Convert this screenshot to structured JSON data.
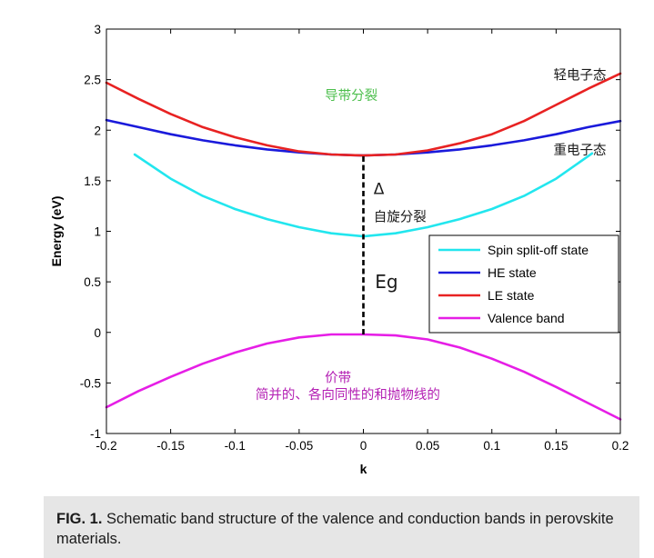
{
  "chart_data": {
    "type": "line",
    "xlabel": "k",
    "ylabel": "Energy (eV)",
    "xlim": [
      -0.2,
      0.2
    ],
    "ylim": [
      -1,
      3
    ],
    "xticks": [
      "-0.2",
      "-0.15",
      "-0.1",
      "-0.05",
      "0",
      "0.05",
      "0.1",
      "0.15",
      "0.2"
    ],
    "yticks": [
      "-1",
      "-0.5",
      "0",
      "0.5",
      "1",
      "1.5",
      "2",
      "2.5",
      "3"
    ],
    "grid": false,
    "legend_position": "center-right",
    "series": [
      {
        "name": "Spin split-off state",
        "color": "#22e6ee",
        "x": [
          -0.178,
          -0.15,
          -0.125,
          -0.1,
          -0.075,
          -0.05,
          -0.025,
          0,
          0.025,
          0.05,
          0.075,
          0.1,
          0.125,
          0.15,
          0.178
        ],
        "y": [
          1.76,
          1.52,
          1.35,
          1.22,
          1.12,
          1.04,
          0.98,
          0.95,
          0.98,
          1.04,
          1.12,
          1.22,
          1.35,
          1.52,
          1.77
        ]
      },
      {
        "name": "HE state",
        "color": "#1a1adb",
        "x": [
          -0.2,
          -0.175,
          -0.15,
          -0.125,
          -0.1,
          -0.075,
          -0.05,
          -0.025,
          0,
          0.025,
          0.05,
          0.075,
          0.1,
          0.125,
          0.15,
          0.175,
          0.2
        ],
        "y": [
          2.1,
          2.03,
          1.96,
          1.9,
          1.85,
          1.81,
          1.78,
          1.76,
          1.75,
          1.76,
          1.78,
          1.81,
          1.85,
          1.9,
          1.96,
          2.03,
          2.09
        ]
      },
      {
        "name": "LE state",
        "color": "#e82222",
        "x": [
          -0.2,
          -0.175,
          -0.15,
          -0.125,
          -0.1,
          -0.075,
          -0.05,
          -0.025,
          0,
          0.025,
          0.05,
          0.075,
          0.1,
          0.125,
          0.15,
          0.175,
          0.2
        ],
        "y": [
          2.47,
          2.31,
          2.16,
          2.03,
          1.93,
          1.85,
          1.79,
          1.76,
          1.75,
          1.76,
          1.8,
          1.87,
          1.96,
          2.09,
          2.25,
          2.41,
          2.56
        ]
      },
      {
        "name": "Valence band",
        "color": "#e61ee6",
        "x": [
          -0.2,
          -0.175,
          -0.15,
          -0.125,
          -0.1,
          -0.075,
          -0.05,
          -0.025,
          0,
          0.025,
          0.05,
          0.075,
          0.1,
          0.125,
          0.15,
          0.175,
          0.2
        ],
        "y": [
          -0.74,
          -0.58,
          -0.44,
          -0.31,
          -0.2,
          -0.11,
          -0.05,
          -0.02,
          -0.02,
          -0.03,
          -0.07,
          -0.15,
          -0.26,
          -0.39,
          -0.54,
          -0.7,
          -0.86
        ]
      }
    ],
    "gap_marker": {
      "x": 0,
      "y_from": -0.02,
      "y_to": 1.75,
      "style": "dashed",
      "color": "#000000"
    },
    "annotations": [
      {
        "text": "轻电子态",
        "color": "#1a1a1a",
        "x": 0.148,
        "y": 2.5
      },
      {
        "text": "导带分裂",
        "color": "#4dbf4d",
        "x": -0.03,
        "y": 2.3
      },
      {
        "text": "重电子态",
        "color": "#1a1a1a",
        "x": 0.148,
        "y": 1.76
      },
      {
        "text": "Δ",
        "color": "#1a1a1a",
        "x": 0.008,
        "y": 1.37
      },
      {
        "text": "自旋分裂",
        "color": "#1a1a1a",
        "x": 0.008,
        "y": 1.1
      },
      {
        "text": "Eg",
        "color": "#1a1a1a",
        "x": 0.009,
        "y": 0.44
      },
      {
        "text": "价带",
        "color": "#b31eb3",
        "x": -0.03,
        "y": -0.49
      },
      {
        "text": "简并的、各向同性的和抛物线的",
        "color": "#b31eb3",
        "x": -0.084,
        "y": -0.66
      }
    ]
  },
  "caption": {
    "label": "FIG. 1.",
    "text": " Schematic band structure of the valence and conduction bands in perovskite materials."
  }
}
